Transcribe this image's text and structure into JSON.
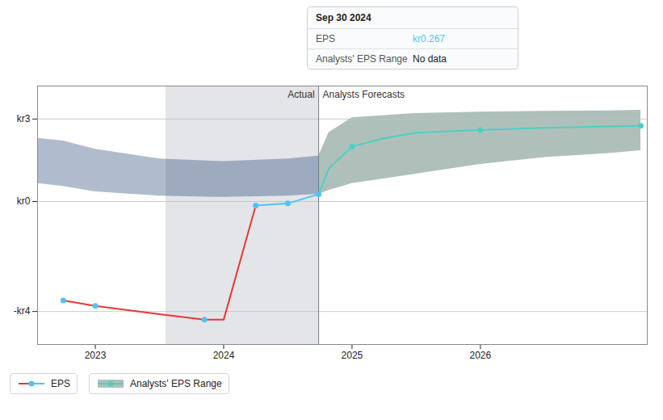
{
  "chart_data": {
    "type": "line",
    "xlim": [
      2022.55,
      2027.3
    ],
    "xticks": [
      2023,
      2024,
      2025,
      2026
    ],
    "ylim": [
      -5.2,
      4.2
    ],
    "yticks": [
      {
        "value": 3,
        "label": "kr3"
      },
      {
        "value": 0,
        "label": "kr0"
      },
      {
        "value": -4,
        "label": "-kr4"
      }
    ],
    "grid": "y",
    "legend": "bottom",
    "shaded_x": [
      2023.55,
      2024.74
    ],
    "shaded_color": "#182840",
    "divider_x": 2024.74,
    "annotations": [
      {
        "text": "Actual",
        "x": 2024.74
      },
      {
        "text": "Analysts Forecasts",
        "x": 2024.74
      }
    ],
    "tooltip": {
      "title": "Sep 30 2024",
      "rows": [
        {
          "label": "EPS",
          "value": "kr0.267",
          "color": "#4fc3f7"
        },
        {
          "label": "Analysts' EPS Range",
          "value": "No data"
        }
      ]
    },
    "series": [
      {
        "name": "EPS",
        "type": "line",
        "color": "#e53935",
        "x": [
          2022.75,
          2023.0,
          2023.5,
          2023.85,
          2024.0,
          2024.25
        ],
        "values": [
          -3.6,
          -3.8,
          -4.1,
          -4.3,
          -4.3,
          -0.15
        ]
      },
      {
        "name": "EPS",
        "type": "line",
        "color": "#4fc3f7",
        "x": [
          2024.25,
          2024.5,
          2024.74
        ],
        "values": [
          -0.15,
          -0.07,
          0.267
        ]
      },
      {
        "name": "EPS",
        "type": "scatter",
        "color": "#4fc3f7",
        "marker": "circle",
        "x": [
          2022.75,
          2023.0,
          2023.85,
          2024.25,
          2024.5,
          2024.74
        ],
        "values": [
          -3.6,
          -3.8,
          -4.3,
          -0.15,
          -0.07,
          0.267
        ]
      },
      {
        "type": "area",
        "color": "#1e4070",
        "x": [
          2022.55,
          2022.75,
          2023.0,
          2023.5,
          2024.0,
          2024.5,
          2024.74
        ],
        "lower": [
          0.65,
          0.55,
          0.35,
          0.2,
          0.15,
          0.2,
          0.267
        ],
        "upper": [
          2.3,
          2.2,
          1.9,
          1.55,
          1.45,
          1.55,
          1.65
        ]
      },
      {
        "name": "Analysts' EPS Range",
        "type": "area",
        "color": "#1a4a3a",
        "x": [
          2024.74,
          2024.82,
          2025.0,
          2025.5,
          2026.0,
          2026.5,
          2027.0,
          2027.25
        ],
        "lower": [
          0.267,
          0.4,
          0.65,
          1.0,
          1.35,
          1.6,
          1.75,
          1.85
        ],
        "upper": [
          1.65,
          2.5,
          3.05,
          3.2,
          3.25,
          3.28,
          3.3,
          3.32
        ]
      },
      {
        "name": "Analysts' EPS Range",
        "type": "line",
        "color": "#4dd0c4",
        "x": [
          2024.74,
          2024.82,
          2025.0,
          2025.25,
          2025.5,
          2026.0,
          2026.5,
          2027.0,
          2027.25
        ],
        "values": [
          0.267,
          1.2,
          2.0,
          2.3,
          2.5,
          2.6,
          2.68,
          2.73,
          2.75
        ]
      },
      {
        "name": "Analysts' EPS Range",
        "type": "scatter",
        "color": "#4dd0c4",
        "marker": "circle",
        "x": [
          2025.0,
          2026.0,
          2027.25
        ],
        "values": [
          2.0,
          2.6,
          2.75
        ]
      }
    ]
  }
}
